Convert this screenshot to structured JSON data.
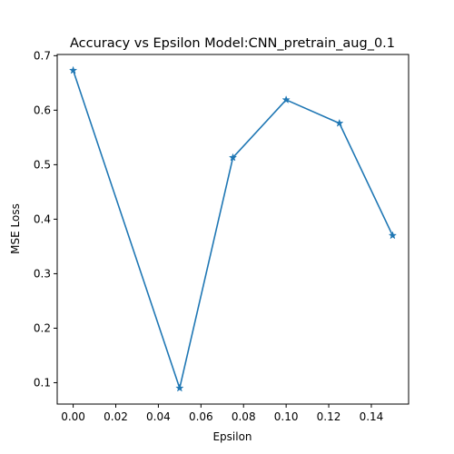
{
  "chart_data": {
    "type": "line",
    "title": "Accuracy vs Epsilon Model:CNN_pretrain_aug_0.1",
    "xlabel": "Epsilon",
    "ylabel": "MSE Loss",
    "x": [
      0.0,
      0.05,
      0.075,
      0.1,
      0.125,
      0.15
    ],
    "series": [
      {
        "values": [
          0.673,
          0.09,
          0.513,
          0.619,
          0.576,
          0.37
        ]
      }
    ],
    "xlim": [
      -0.0075,
      0.1575
    ],
    "ylim": [
      0.0608,
      0.7022
    ],
    "xticks": [
      0.0,
      0.02,
      0.04,
      0.06,
      0.08,
      0.1,
      0.12,
      0.14
    ],
    "xtick_labels": [
      "0.00",
      "0.02",
      "0.04",
      "0.06",
      "0.08",
      "0.10",
      "0.12",
      "0.14"
    ],
    "yticks": [
      0.1,
      0.2,
      0.3,
      0.4,
      0.5,
      0.6,
      0.7
    ],
    "ytick_labels": [
      "0.1",
      "0.2",
      "0.3",
      "0.4",
      "0.5",
      "0.6",
      "0.7"
    ],
    "marker": "star",
    "grid": false,
    "color": "#1f77b4"
  }
}
